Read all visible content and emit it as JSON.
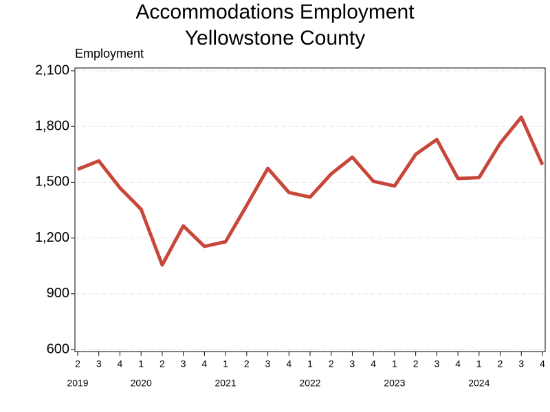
{
  "chart_data": {
    "type": "line",
    "title": "Accommodations Employment",
    "subtitle": "Yellowstone County",
    "y_label": "Employment",
    "categories": [
      "2",
      "3",
      "4",
      "1",
      "2",
      "3",
      "4",
      "1",
      "2",
      "3",
      "4",
      "1",
      "2",
      "3",
      "4",
      "1",
      "2",
      "3",
      "4",
      "1",
      "2",
      "3",
      "4"
    ],
    "years": [
      "2019",
      null,
      null,
      "2020",
      null,
      null,
      null,
      "2021",
      null,
      null,
      null,
      "2022",
      null,
      null,
      null,
      "2023",
      null,
      null,
      null,
      "2024",
      null,
      null,
      null
    ],
    "series": [
      {
        "name": "Employment",
        "color": "#c8473a",
        "values": [
          1570,
          1615,
          1470,
          1355,
          1055,
          1265,
          1155,
          1180,
          1375,
          1575,
          1445,
          1420,
          1545,
          1635,
          1505,
          1480,
          1650,
          1730,
          1520,
          1525,
          1710,
          1850,
          1595
        ]
      }
    ],
    "ylim": [
      589,
      2115
    ],
    "yticks": [
      {
        "value": 600,
        "label": "600"
      },
      {
        "value": 900,
        "label": "900"
      },
      {
        "value": 1200,
        "label": "1,200"
      },
      {
        "value": 1500,
        "label": "1,500"
      },
      {
        "value": 1800,
        "label": "1,800"
      },
      {
        "value": 2100,
        "label": "2,100"
      }
    ],
    "grid": true
  }
}
